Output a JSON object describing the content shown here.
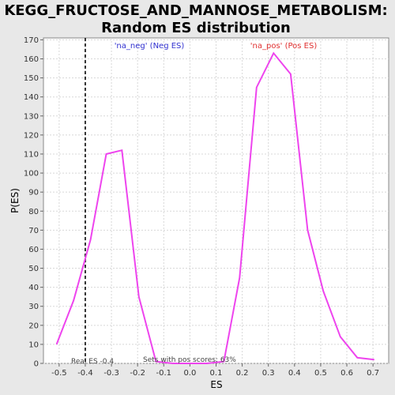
{
  "chart_data": {
    "type": "line",
    "title_line1": "KEGG_FRUCTOSE_AND_MANNOSE_METABOLISM:",
    "title_line2": "Random ES distribution",
    "xlabel": "ES",
    "ylabel": "P(ES)",
    "xlim": [
      -0.56,
      0.76
    ],
    "ylim": [
      0,
      171
    ],
    "x_ticks": [
      -0.5,
      -0.4,
      -0.3,
      -0.2,
      -0.1,
      0.0,
      0.1,
      0.2,
      0.3,
      0.4,
      0.5,
      0.6,
      0.7
    ],
    "x_tick_labels": [
      "-0.5",
      "-0.4",
      "-0.3",
      "-0.2",
      "-0.1",
      "0.0",
      "0.1",
      "0.2",
      "0.3",
      "0.4",
      "0.5",
      "0.6",
      "0.7"
    ],
    "y_ticks": [
      0,
      10,
      20,
      30,
      40,
      50,
      60,
      70,
      80,
      90,
      100,
      110,
      120,
      130,
      140,
      150,
      160,
      170
    ],
    "grid": true,
    "series": [
      {
        "color": "#ee44ee",
        "x": [
          -0.51,
          -0.445,
          -0.38,
          -0.32,
          -0.26,
          -0.195,
          -0.13,
          -0.065,
          0.0,
          0.065,
          0.13,
          0.19,
          0.255,
          0.32,
          0.385,
          0.45,
          0.51,
          0.575,
          0.64,
          0.705
        ],
        "y": [
          10,
          33,
          65,
          110,
          112,
          35,
          1,
          0,
          0,
          0,
          1,
          45,
          145,
          163,
          152,
          70,
          38,
          14,
          3,
          2
        ]
      }
    ],
    "real_es": -0.4,
    "real_es_label": "Real ES -0.4",
    "legend_neg": "'na_neg' (Neg ES)",
    "legend_pos": "'na_pos' (Pos ES)",
    "pos_scores_label": "Sets with pos scores: 63%",
    "colors": {
      "line": "#ee44ee",
      "legend_neg": "#3030d0",
      "legend_pos": "#e03030",
      "plot_bg": "#ffffff",
      "page_bg": "#e8e8e8"
    }
  }
}
